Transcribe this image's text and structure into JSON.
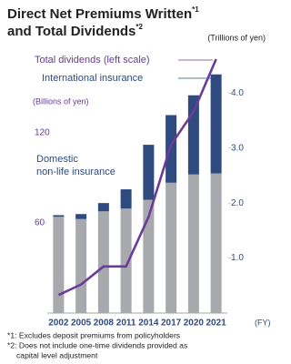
{
  "chart_data": {
    "type": "bar",
    "stacked": true,
    "title_lines": [
      "Direct Net Premiums Written",
      "and Total Dividends"
    ],
    "title_notes": [
      "*1",
      "*2"
    ],
    "ylabel": "(Billions of yen)",
    "y2label": "(Trillions of yen)",
    "xlabel": "(FY)",
    "categories": [
      "2002",
      "2005",
      "2008",
      "2011",
      "2014",
      "2017",
      "2020",
      "2021"
    ],
    "series": [
      {
        "name": "Domestic non-life insurance",
        "type": "bar",
        "axis": "y2",
        "color": "#a7a9ac",
        "values": [
          1.75,
          1.71,
          1.85,
          1.9,
          2.06,
          2.37,
          2.52,
          2.54
        ]
      },
      {
        "name": "International insurance",
        "type": "bar",
        "axis": "y2",
        "color": "#2e4a7e",
        "values": [
          0.03,
          0.09,
          0.15,
          0.35,
          1.0,
          1.23,
          1.44,
          1.8
        ]
      },
      {
        "name": "Total dividends (left scale)",
        "type": "line",
        "axis": "y",
        "color": "#6a3b98",
        "values": [
          12,
          19,
          31,
          31,
          64,
          112,
          134,
          169
        ]
      }
    ],
    "ylim": [
      0,
      172
    ],
    "yticks": [
      60,
      120
    ],
    "y2lim": [
      0,
      4.7
    ],
    "y2ticks": [
      {
        "value": 1,
        "label": "1.0"
      },
      {
        "value": 2,
        "label": "2.0"
      },
      {
        "value": 3,
        "label": "3.0"
      },
      {
        "value": 4,
        "label": "4.0"
      }
    ],
    "grid": false,
    "footnotes": [
      [
        "*1: Excludes deposit premiums from policyholders"
      ],
      [
        "*2: Does not include one-time dividends provided as",
        "capital level adjustment"
      ]
    ]
  }
}
